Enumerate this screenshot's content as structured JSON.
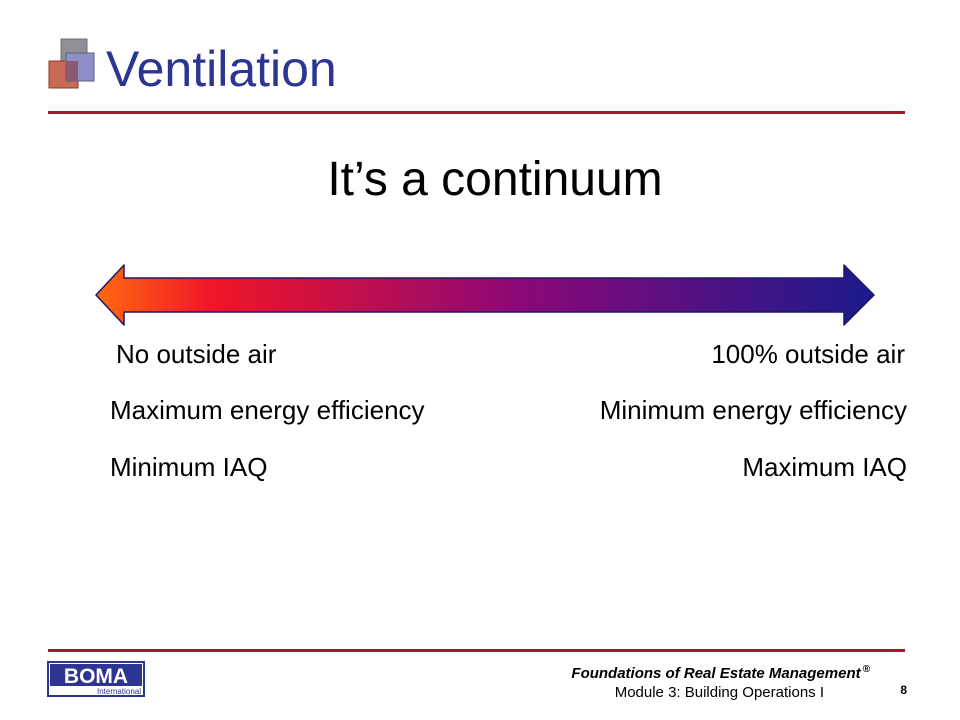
{
  "slide": {
    "title": "Ventilation",
    "subtitle": "It’s a continuum"
  },
  "continuum": {
    "left": {
      "air": "No outside air",
      "energy": "Maximum energy efficiency",
      "iaq": "Minimum IAQ"
    },
    "right": {
      "air": "100% outside air",
      "energy": "Minimum energy efficiency",
      "iaq": "Maximum IAQ"
    },
    "gradient": [
      "#ff6a10",
      "#ee0a2a",
      "#8a0878",
      "#1a1a8c"
    ]
  },
  "footer": {
    "logo_text": "BOMA",
    "logo_subtext": "International",
    "course": "Foundations of Real Estate Management",
    "registered_mark": "®",
    "module": "Module 3: Building Operations I",
    "page_number": "8"
  },
  "colors": {
    "title": "#2c3592",
    "rule": "#9b1b2b",
    "logo": "#2c3592"
  }
}
